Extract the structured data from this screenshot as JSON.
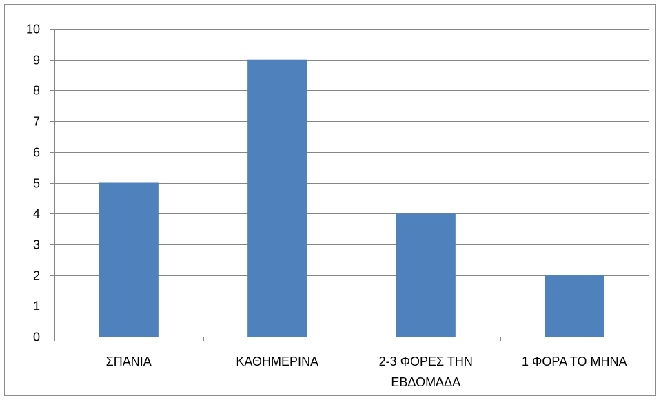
{
  "chart_data": {
    "type": "bar",
    "title": "",
    "xlabel": "",
    "ylabel": "",
    "categories": [
      [
        "ΣΠΑΝΙΑ"
      ],
      [
        "ΚΑΘΗΜΕΡΙΝΑ"
      ],
      [
        "2-3 ΦΟΡΕΣ ΤΗΝ",
        "ΕΒΔΟΜΑΔΑ"
      ],
      [
        "1 ΦΟΡΑ ΤΟ ΜΗΝΑ"
      ]
    ],
    "values": [
      5,
      9,
      4,
      2
    ],
    "ylim": [
      0,
      10
    ],
    "yticks": [
      0,
      1,
      2,
      3,
      4,
      5,
      6,
      7,
      8,
      9,
      10
    ],
    "grid": true,
    "legend": "none",
    "bar_color": "#4f81bd",
    "grid_color": "#868686",
    "axis_color": "#868686"
  }
}
